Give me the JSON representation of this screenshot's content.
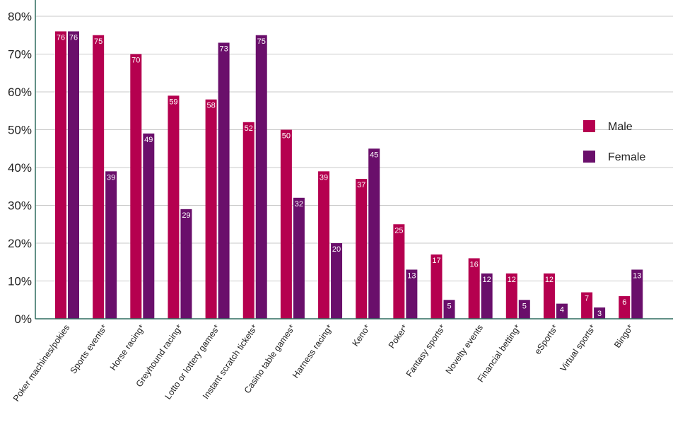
{
  "chart_data": {
    "type": "bar",
    "title": "",
    "xlabel": "",
    "ylabel": "",
    "ylim": [
      0,
      80
    ],
    "yticks": [
      "0%",
      "10%",
      "20%",
      "30%",
      "40%",
      "50%",
      "60%",
      "70%",
      "80%"
    ],
    "grid": true,
    "legend_position": "right",
    "categories": [
      "Poker machines/pokies",
      "Sports events*",
      "Horse racing*",
      "Greyhound racing*",
      "Lotto or lottery games*",
      "Instant scratch tickets*",
      "Casino table games*",
      "Harness racing*",
      "Keno*",
      "Poker*",
      "Fantasy sports*",
      "Novelty events",
      "Financial betting*",
      "eSports*",
      "Virtual sports*",
      "Bingo*"
    ],
    "series": [
      {
        "name": "Male",
        "color": "#b5004f",
        "values": [
          76,
          75,
          70,
          59,
          58,
          52,
          50,
          39,
          37,
          25,
          17,
          16,
          12,
          12,
          7,
          6
        ]
      },
      {
        "name": "Female",
        "color": "#6a0f6b",
        "values": [
          76,
          39,
          49,
          29,
          73,
          75,
          32,
          20,
          45,
          13,
          5,
          12,
          5,
          4,
          3,
          13
        ]
      }
    ]
  }
}
